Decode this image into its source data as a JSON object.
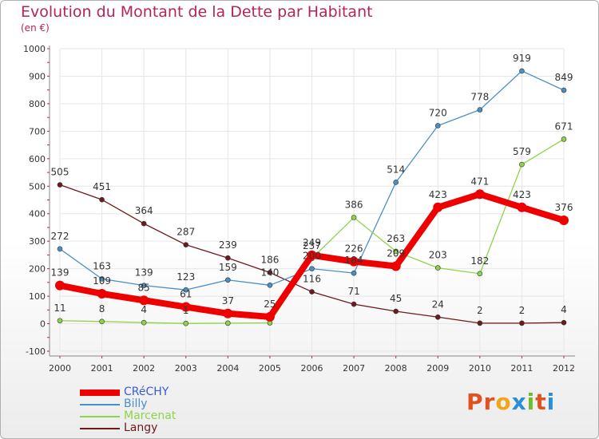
{
  "header": {
    "title": "Evolution du Montant de la Dette par Habitant",
    "subtitle": "(en €)"
  },
  "colors": {
    "title": "#b4245a",
    "frame_border": "#b0b0b0",
    "grid": "#e6e6e6",
    "axis_text": "#333333",
    "tick_marks": "#d0202a"
  },
  "logo": {
    "parts": [
      "Pr",
      "o",
      "x",
      "i",
      "t",
      "i"
    ]
  },
  "chart_data": {
    "type": "line",
    "title": "Evolution du Montant de la Dette par Habitant",
    "subtitle": "(en €)",
    "xlabel": "",
    "ylabel": "",
    "x": [
      "2000",
      "2001",
      "2002",
      "2003",
      "2004",
      "2005",
      "2006",
      "2007",
      "2008",
      "2009",
      "2010",
      "2011",
      "2012"
    ],
    "ylim": [
      -100,
      1000
    ],
    "yticks": [
      "-100",
      "0",
      "100",
      "200",
      "300",
      "400",
      "500",
      "600",
      "700",
      "800",
      "900",
      "1000"
    ],
    "grid": true,
    "legend_position": "bottom-left",
    "series": [
      {
        "name": "CRéCHY",
        "color": "#ee0000",
        "width": 8,
        "values": [
          139,
          109,
          85,
          61,
          37,
          25,
          249,
          226,
          209,
          423,
          471,
          423,
          376
        ],
        "labels": [
          "139",
          "109",
          "85",
          "61",
          "37",
          "25",
          "249",
          "226",
          "209",
          "423",
          "471",
          "423",
          "376"
        ]
      },
      {
        "name": "Billy",
        "color": "#4a90c8",
        "width": 1.3,
        "values": [
          272,
          163,
          139,
          123,
          159,
          140,
          200,
          184,
          514,
          720,
          778,
          919,
          849
        ],
        "labels": [
          "272",
          "163",
          "139",
          "123",
          "159",
          "140",
          "200",
          "184",
          "514",
          "720",
          "778",
          "919",
          "849"
        ]
      },
      {
        "name": "Marcenat",
        "color": "#8ed44a",
        "width": 1.3,
        "values": [
          11,
          8,
          4,
          1,
          2,
          3,
          237,
          386,
          263,
          203,
          182,
          579,
          671
        ],
        "labels": [
          "11",
          "8",
          "4",
          "1",
          "",
          "",
          "237",
          "386",
          "263",
          "203",
          "182",
          "579",
          "671"
        ]
      },
      {
        "name": "Langy",
        "color": "#6e1a1a",
        "width": 1.3,
        "values": [
          505,
          451,
          364,
          287,
          239,
          186,
          116,
          71,
          45,
          24,
          2,
          2,
          4
        ],
        "labels": [
          "505",
          "451",
          "364",
          "287",
          "239",
          "186",
          "116",
          "71",
          "45",
          "24",
          "2",
          "2",
          "4"
        ]
      }
    ]
  }
}
